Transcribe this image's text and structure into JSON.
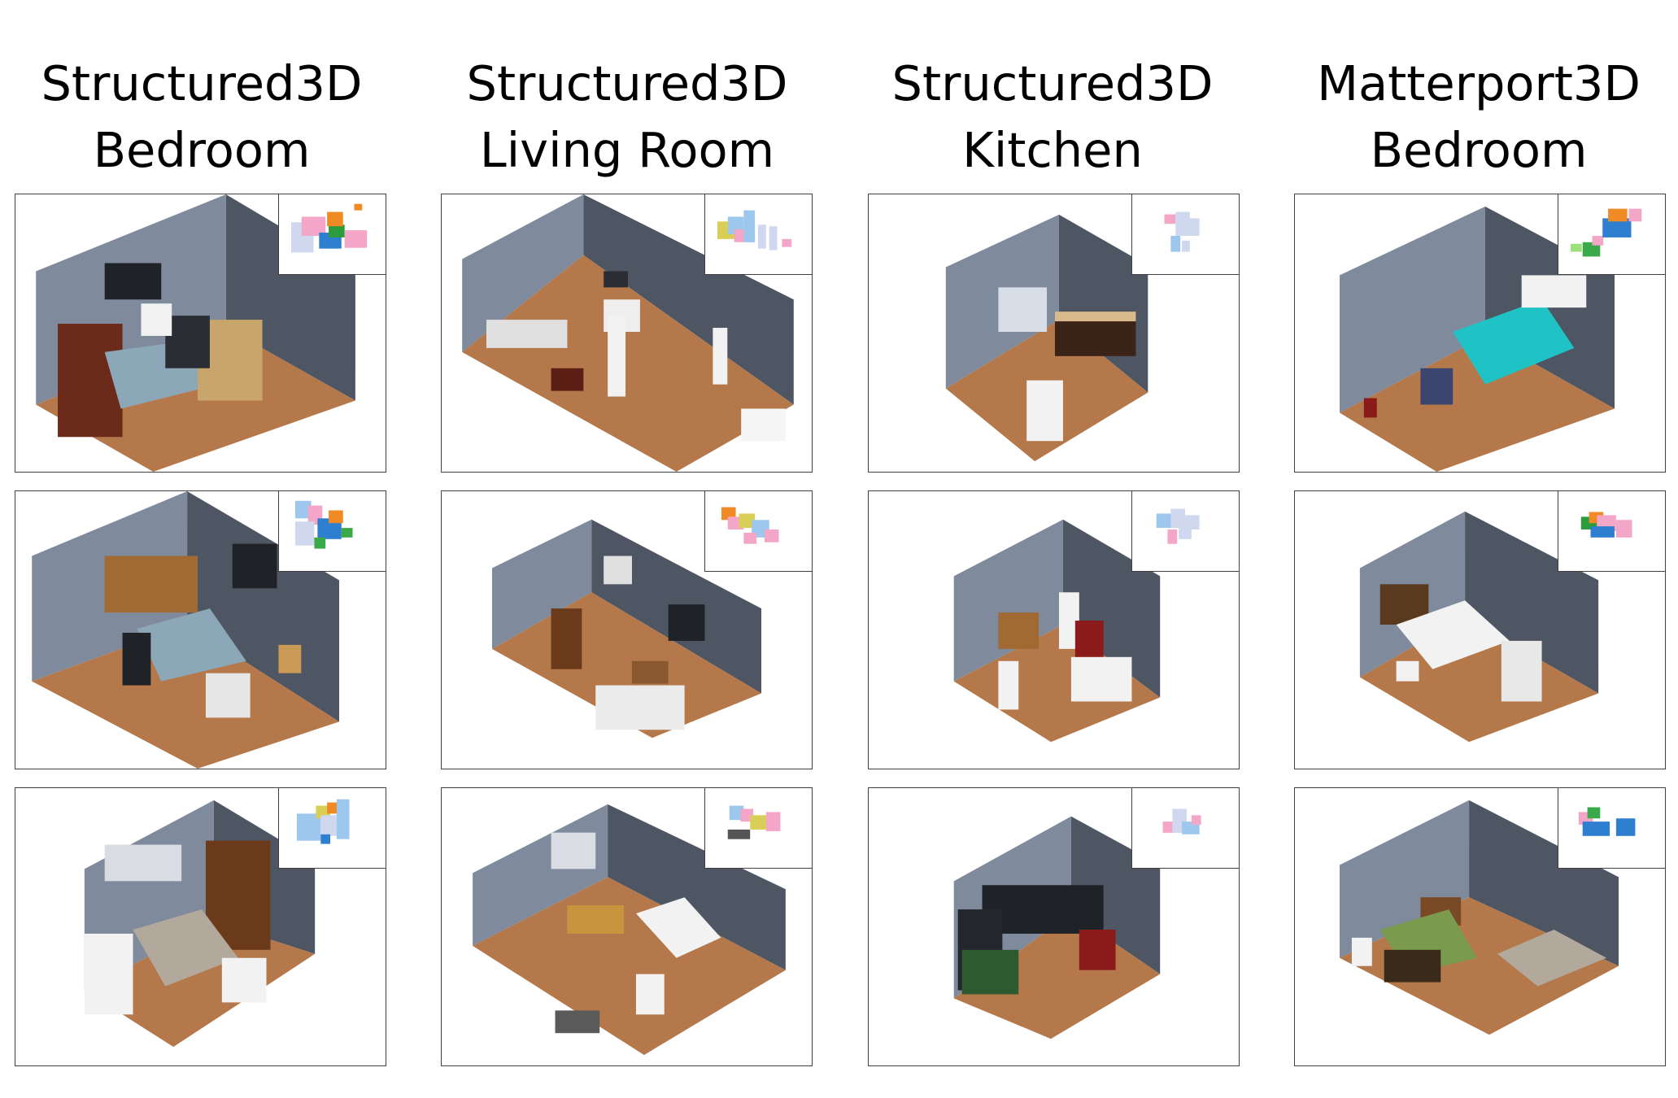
{
  "columns": [
    {
      "dataset": "Structured3D",
      "room": "Bedroom"
    },
    {
      "dataset": "Structured3D",
      "room": "Living Room"
    },
    {
      "dataset": "Structured3D",
      "room": "Kitchen"
    },
    {
      "dataset": "Matterport3D",
      "room": "Bedroom"
    }
  ],
  "colors": {
    "back_wall": "#7f8b9c",
    "side_wall": "#4f5663",
    "floor": "#b5784a",
    "border": "#404040"
  }
}
